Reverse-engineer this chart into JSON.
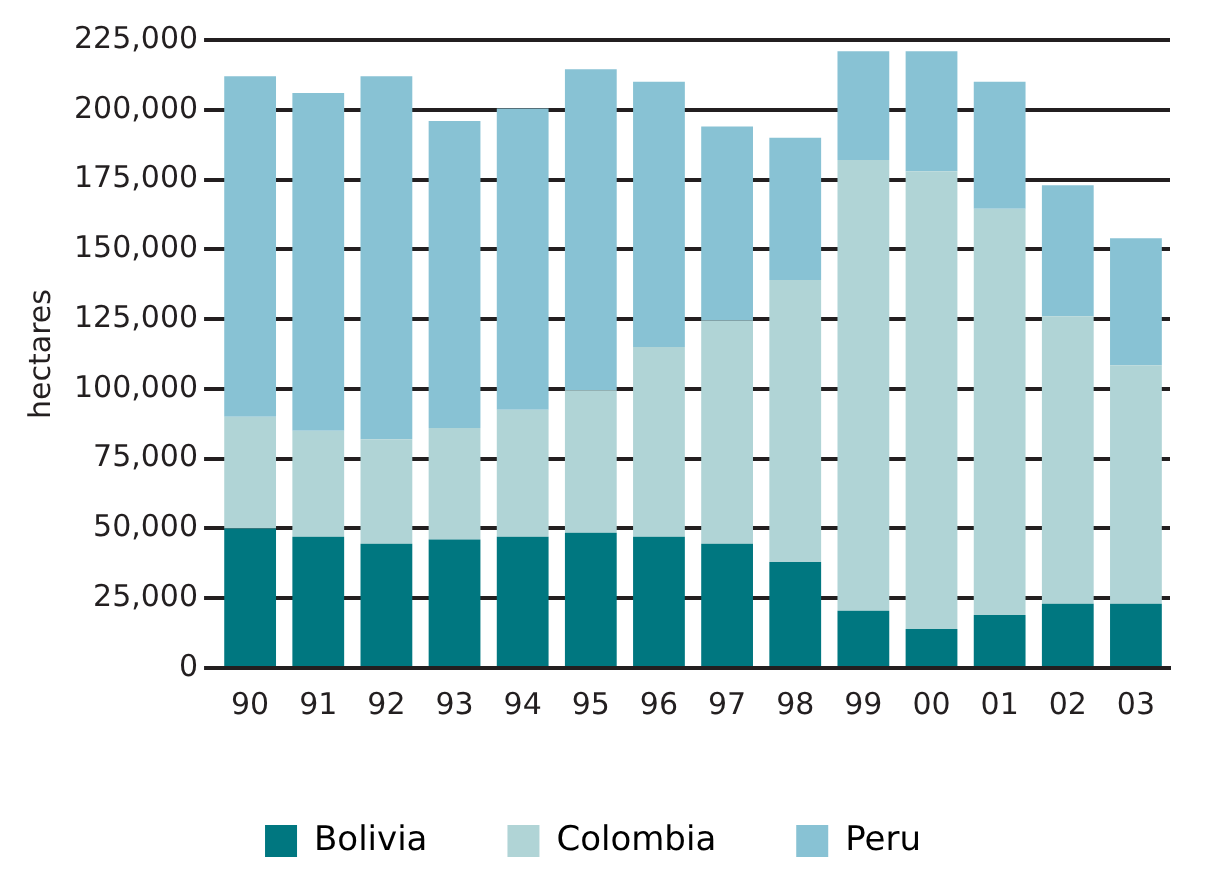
{
  "chart_data": {
    "type": "bar",
    "stacked": true,
    "ylabel": "hectares",
    "categories": [
      "90",
      "91",
      "92",
      "93",
      "94",
      "95",
      "96",
      "97",
      "98",
      "99",
      "00",
      "01",
      "02",
      "03"
    ],
    "series": [
      {
        "name": "Bolivia",
        "color": "#007780",
        "values": [
          50000,
          47000,
          44500,
          46000,
          47000,
          48500,
          47000,
          44500,
          38000,
          20500,
          14000,
          19000,
          23000,
          23000
        ]
      },
      {
        "name": "Colombia",
        "color": "#b0d4d6",
        "values": [
          40000,
          38000,
          37500,
          40000,
          45500,
          51000,
          68000,
          80000,
          101000,
          161500,
          164000,
          145500,
          103000,
          85500
        ]
      },
      {
        "name": "Peru",
        "color": "#88c2d4",
        "values": [
          122000,
          121000,
          130000,
          110000,
          108000,
          115000,
          95000,
          69500,
          51000,
          39000,
          43000,
          45500,
          47000,
          45500
        ]
      }
    ],
    "ylim": [
      0,
      225000
    ],
    "yticks": [
      0,
      {
        "value": 25000,
        "label": "25,000"
      },
      {
        "value": 50000,
        "label": "50,000"
      },
      {
        "value": 75000,
        "label": "75,000"
      },
      {
        "value": 100000,
        "label": "100,000"
      },
      {
        "value": 125000,
        "label": "125,000"
      },
      {
        "value": 150000,
        "label": "150,000"
      },
      {
        "value": 175000,
        "label": "175,000"
      },
      {
        "value": 200000,
        "label": "200,000"
      },
      {
        "value": 225000,
        "label": "225,000"
      }
    ],
    "grid": "y",
    "legend": "bottom"
  }
}
